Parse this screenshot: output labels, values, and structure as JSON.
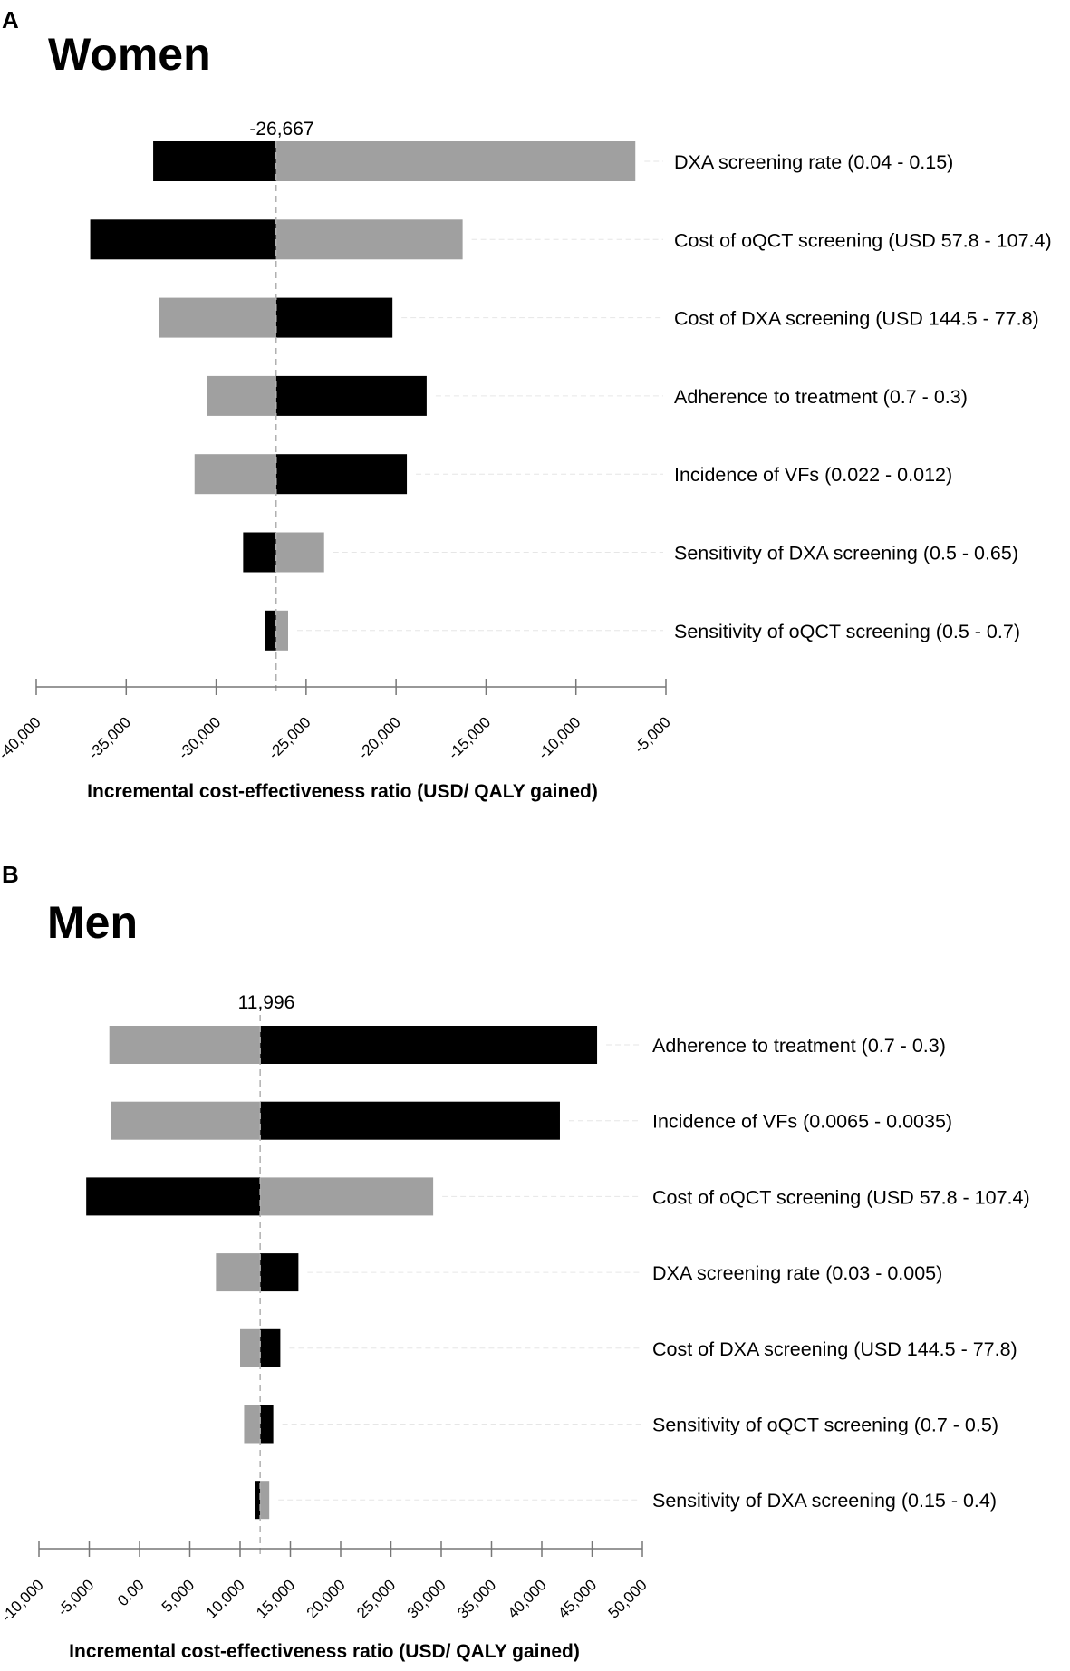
{
  "colors": {
    "low_bar": "#000000",
    "high_bar": "#a0a0a0",
    "axis": "#777777",
    "baseline": "#b0b0b0",
    "guide": "#e6e6e6"
  },
  "chart_data": [
    {
      "panel": "A",
      "type": "tornado",
      "title": "Women",
      "xlabel": "Incremental cost-effectiveness ratio (USD/ QALY gained)",
      "ylabel": "",
      "xlim": [
        -40000,
        -5000
      ],
      "baseline": -26667,
      "baseline_label": "-26,667",
      "tick_values": [
        -40000,
        -35000,
        -30000,
        -25000,
        -20000,
        -15000,
        -10000,
        -5000
      ],
      "tick_labels": [
        "-40,000",
        "-35,000",
        "-30,000",
        "-25,000",
        "-20,000",
        "-15,000",
        "-10,000",
        "-5,000"
      ],
      "grid": false,
      "series_colors": [
        "black",
        "gray"
      ],
      "rows": [
        {
          "label": "DXA screening rate (0.04 - 0.15)",
          "black": -33500,
          "gray": -6700
        },
        {
          "label": "Cost of oQCT screening (USD 57.8 - 107.4)",
          "black": -37000,
          "gray": -16300
        },
        {
          "label": "Cost of DXA screening (USD 144.5 - 77.8)",
          "black": -20200,
          "gray": -33200
        },
        {
          "label": "Adherence to treatment (0.7 - 0.3)",
          "black": -18300,
          "gray": -30500
        },
        {
          "label": "Incidence of VFs (0.022 - 0.012)",
          "black": -19400,
          "gray": -31200
        },
        {
          "label": "Sensitivity of DXA screening (0.5 - 0.65)",
          "black": -28500,
          "gray": -24000
        },
        {
          "label": "Sensitivity of oQCT screening (0.5 - 0.7)",
          "black": -27300,
          "gray": -26000
        }
      ]
    },
    {
      "panel": "B",
      "type": "tornado",
      "title": "Men",
      "xlabel": "Incremental cost-effectiveness ratio (USD/ QALY gained)",
      "ylabel": "",
      "xlim": [
        -10000,
        50000
      ],
      "baseline": 11996,
      "baseline_label": "11,996",
      "tick_values": [
        -10000,
        -5000,
        0,
        5000,
        10000,
        15000,
        20000,
        25000,
        30000,
        35000,
        40000,
        45000,
        50000
      ],
      "tick_labels": [
        "-10,000",
        "-5,000",
        "0.00",
        "5,000",
        "10,000",
        "15,000",
        "20,000",
        "25,000",
        "30,000",
        "35,000",
        "40,000",
        "45,000",
        "50,000"
      ],
      "grid": false,
      "series_colors": [
        "black",
        "gray"
      ],
      "rows": [
        {
          "label": "Adherence to treatment (0.7 - 0.3)",
          "black": 45500,
          "gray": -3000
        },
        {
          "label": "Incidence of VFs (0.0065 - 0.0035)",
          "black": 41800,
          "gray": -2800
        },
        {
          "label": "Cost of oQCT screening (USD 57.8 - 107.4)",
          "black": -5300,
          "gray": 29200
        },
        {
          "label": "DXA screening rate (0.03 - 0.005)",
          "black": 15800,
          "gray": 7600
        },
        {
          "label": "Cost of DXA screening (USD 144.5 - 77.8)",
          "black": 14000,
          "gray": 10000
        },
        {
          "label": "Sensitivity of oQCT screening (0.7 - 0.5)",
          "black": 13300,
          "gray": 10400
        },
        {
          "label": "Sensitivity of DXA screening (0.15 - 0.4)",
          "black": 11500,
          "gray": 12900
        }
      ]
    }
  ]
}
